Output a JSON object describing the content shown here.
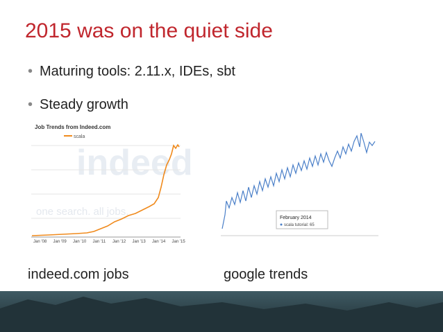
{
  "title": "2015 was on the quiet side",
  "bullets": [
    "Maturing tools: 2.11.x, IDEs, sbt",
    "Steady growth"
  ],
  "indeed_chart": {
    "title": "Job Trends from Indeed.com",
    "legend": "scala",
    "logo": "indeed",
    "watermark": "one search. all jobs.",
    "x_labels": [
      "Jan '08",
      "Jan '09",
      "Jan '10",
      "Jan '11",
      "Jan '12",
      "Jan '13",
      "Jan '14",
      "Jan '15"
    ]
  },
  "google_chart": {
    "tooltip_date": "February 2014",
    "tooltip_series": "scala tutorial: 65"
  },
  "captions": [
    "indeed.com jobs",
    "google trends"
  ]
}
